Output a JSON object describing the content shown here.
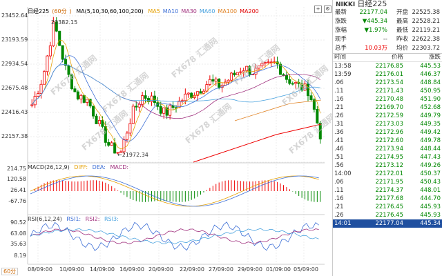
{
  "chart": {
    "title": "日经225",
    "period": "60分",
    "ma_label": "MA(5,10,30,60,100,200)",
    "ma_items": [
      {
        "label": "MA5",
        "color": "#e6a000"
      },
      {
        "label": "MA10",
        "color": "#3d6fd6"
      },
      {
        "label": "MA30",
        "color": "#a0307e"
      },
      {
        "label": "MA60",
        "color": "#4aa3df"
      },
      {
        "label": "MA100",
        "color": "#e08020"
      },
      {
        "label": "MA200",
        "color": "#e00000"
      }
    ],
    "y_labels": [
      "23452.64",
      "23193.59",
      "22934.54",
      "22675.48",
      "22416.43",
      "22157.38"
    ],
    "high_label": "23382.15",
    "low_label": "21972.34",
    "x_labels": [
      "08/09:00",
      "10/09:00",
      "14/09:00",
      "16/09:00",
      "20/09:00",
      "22/09:00",
      "27/09:00",
      "29/09:00",
      "01/09:00",
      "05/09:00"
    ],
    "macd": {
      "label": "MACD(26,12,9)",
      "items": [
        {
          "label": "DIFF:",
          "color": "#e6a000"
        },
        {
          "label": "DEA:",
          "color": "#3d6fd6"
        },
        {
          "label": "MACD:",
          "color": "#a0307e"
        }
      ],
      "y_labels": [
        "214.75",
        "120.58",
        "26.41",
        "-67.76"
      ]
    },
    "rsi": {
      "label": "RSI(6,12,24)",
      "items": [
        {
          "label": "RSI1:",
          "color": "#3d6fd6"
        },
        {
          "label": "RSI2:",
          "color": "#a0307e"
        },
        {
          "label": "RSI3:",
          "color": "#4aa3df"
        }
      ],
      "y_labels": [
        "90.52",
        "63.08",
        "35.63",
        "8.19"
      ]
    },
    "watermark": "FX678 汇通网"
  },
  "quote": {
    "code": "NIKKI",
    "name": "日经225",
    "rows": [
      {
        "k1": "最新",
        "v1": "22177.04",
        "k2": "开盘",
        "v2": "22525.38",
        "c1": "green"
      },
      {
        "k1": "涨跌",
        "v1": "▼445.34",
        "k2": "最高",
        "v2": "22528.21",
        "c1": "green"
      },
      {
        "k1": "涨幅",
        "v1": "▼1.97%",
        "k2": "最低",
        "v2": "22119.21",
        "c1": "green"
      },
      {
        "k1": "现手",
        "v1": "--",
        "k2": "昨收",
        "v2": "22622.38",
        "c1": "plain"
      },
      {
        "k1": "总手",
        "v1": "10.03万",
        "k2": "均价",
        "v2": "22303.72",
        "c1": "red"
      }
    ],
    "headers": [
      "时间",
      "价格",
      "涨跌"
    ],
    "ticks": [
      {
        "t": "13:58",
        "p": "22176.85",
        "c": "445.53"
      },
      {
        "t": "13:59",
        "p": "22176.01",
        "c": "446.37"
      },
      {
        "t": ".06",
        "p": "22173.54",
        "c": "448.84"
      },
      {
        "t": ".11",
        "p": "22171.43",
        "c": "450.95"
      },
      {
        "t": ".16",
        "p": "22170.48",
        "c": "451.90"
      },
      {
        "t": ".21",
        "p": "22169.70",
        "c": "452.68"
      },
      {
        "t": ".26",
        "p": "22172.59",
        "c": "449.79"
      },
      {
        "t": ".31",
        "p": "22173.03",
        "c": "449.35"
      },
      {
        "t": ".36",
        "p": "22172.96",
        "c": "449.42"
      },
      {
        "t": ".41",
        "p": "22172.60",
        "c": "449.78"
      },
      {
        "t": ".46",
        "p": "22173.94",
        "c": "448.44"
      },
      {
        "t": ".51",
        "p": "22174.95",
        "c": "447.43"
      },
      {
        "t": ".56",
        "p": "22173.12",
        "c": "449.26"
      },
      {
        "t": "14:00",
        "p": "22172.01",
        "c": "450.37"
      },
      {
        "t": ".06",
        "p": "22171.95",
        "c": "450.43"
      },
      {
        "t": ".11",
        "p": "22174.37",
        "c": "448.01"
      },
      {
        "t": ".16",
        "p": "22177.68",
        "c": "444.70"
      },
      {
        "t": ".21",
        "p": "22176.45",
        "c": "445.93"
      },
      {
        "t": ".26",
        "p": "22176.45",
        "c": "445.93"
      },
      {
        "t": "14:01",
        "p": "22177.04",
        "c": "445.34"
      }
    ]
  }
}
